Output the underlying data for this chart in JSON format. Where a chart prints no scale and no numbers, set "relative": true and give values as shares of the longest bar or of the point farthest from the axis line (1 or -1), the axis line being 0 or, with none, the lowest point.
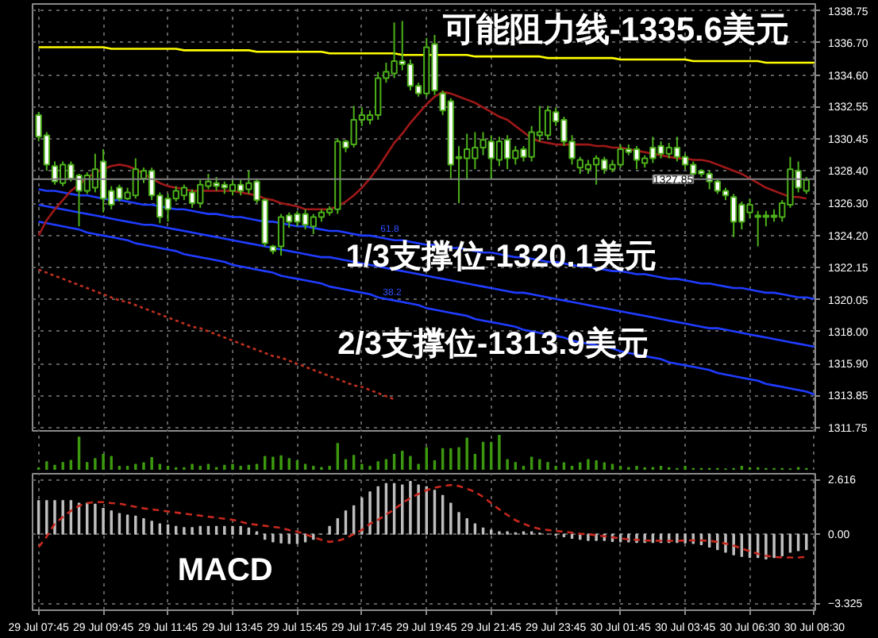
{
  "chart_data": [
    {
      "type": "candlestick",
      "categories": [
        null,
        null,
        null,
        null,
        null,
        null,
        null,
        null,
        null,
        null,
        null,
        null,
        null,
        null,
        null,
        null,
        null,
        null,
        null,
        null,
        null,
        null,
        null,
        null,
        null,
        null,
        null,
        null,
        null,
        null,
        null,
        null,
        null,
        null,
        null,
        null,
        null,
        null,
        null,
        null,
        null,
        null,
        null,
        null,
        null,
        null,
        null,
        null,
        null,
        null,
        null,
        null,
        null,
        null,
        null,
        null,
        null,
        null,
        null,
        null,
        null,
        null,
        null,
        null,
        null,
        null,
        null,
        null,
        null,
        null,
        null,
        null,
        null,
        null,
        null,
        null,
        null,
        null,
        null,
        null,
        null,
        null,
        null,
        null,
        null,
        null,
        null,
        null,
        null,
        null,
        null,
        null,
        null,
        null,
        null,
        null,
        null
      ],
      "tick_labels": "y",
      "ylim": [
        1311.45,
        1339.2
      ],
      "yticks": [
        1338.75,
        {
          "value": 1336.7,
          "label": "1336.70"
        },
        {
          "value": 1334.6,
          "label": "1334.60"
        },
        1332.55,
        1330.45,
        {
          "value": 1328.4,
          "label": "1328.40"
        },
        {
          "value": 1326.3,
          "label": "1326.30"
        },
        {
          "value": 1324.2,
          "label": "1324.20"
        },
        1322.15,
        1320.05,
        {
          "value": 1318,
          "label": "1318.00"
        },
        {
          "value": 1315.9,
          "label": "1315.90"
        },
        1313.85,
        1311.75
      ],
      "grid": true,
      "ref_lines": [
        {
          "axis": "y",
          "value": 1327.85,
          "label": "1327.85",
          "color": "#808080"
        }
      ],
      "annotations": [
        "可能阻力线-1335.6美元",
        "1/3支撑位-1320.1美元",
        "2/3支撑位-1313.9美元",
        "61.8",
        "38.2"
      ],
      "series": [
        {
          "type": "line",
          "color": "#ffff00",
          "values": [
            1336.4,
            1336.4,
            1336.4,
            1336.4,
            1336.4,
            1336.4,
            1336.4,
            1336.4,
            1336.4,
            1336.3,
            1336.3,
            1336.3,
            1336.3,
            1336.3,
            1336.3,
            1336.3,
            1336.3,
            1336.3,
            1336.2,
            1336.2,
            1336.2,
            1336.2,
            1336.2,
            1336.2,
            1336.2,
            1336.2,
            1336.2,
            1336.1,
            1336.1,
            1336.1,
            1336.1,
            1336.1,
            1336.1,
            1336.1,
            1336.1,
            1336.1,
            1336.0,
            1336.0,
            1336.0,
            1336.0,
            1336.0,
            1336.0,
            1336.0,
            1336.0,
            1336.0,
            1335.9,
            1335.9,
            1335.9,
            1335.9,
            1335.9,
            1335.9,
            1335.9,
            1335.9,
            1335.9,
            1335.8,
            1335.8,
            1335.8,
            1335.8,
            1335.8,
            1335.8,
            1335.8,
            1335.8,
            1335.8,
            1335.7,
            1335.7,
            1335.7,
            1335.7,
            1335.7,
            1335.7,
            1335.7,
            1335.7,
            1335.7,
            1335.6,
            1335.6,
            1335.6,
            1335.6,
            1335.6,
            1335.6,
            1335.6,
            1335.6,
            1335.6,
            1335.5,
            1335.5,
            1335.5,
            1335.5,
            1335.5,
            1335.5,
            1335.5,
            1335.5,
            1335.5,
            1335.4,
            1335.4,
            1335.4,
            1335.4,
            1335.4,
            1335.4,
            1335.4
          ]
        },
        {
          "type": "line",
          "color": "#1f3cff",
          "values": [
            1327.2,
            1327.1,
            1327.1,
            1327.0,
            1326.9,
            1326.8,
            1326.8,
            1326.7,
            1326.6,
            1326.5,
            1326.5,
            1326.4,
            1326.3,
            1326.2,
            1326.2,
            1326.1,
            1326.0,
            1325.9,
            1325.9,
            1325.8,
            1325.7,
            1325.6,
            1325.6,
            1325.5,
            1325.4,
            1325.4,
            1325.3,
            1325.2,
            1325.1,
            1325.1,
            1325.0,
            1324.9,
            1324.8,
            1324.8,
            1324.7,
            1324.6,
            1324.5,
            1324.5,
            1324.4,
            1324.3,
            1324.2,
            1324.2,
            1324.1,
            1324.0,
            1323.9,
            1323.9,
            1323.8,
            1323.7,
            1323.6,
            1323.6,
            1323.5,
            1323.4,
            1323.4,
            1323.3,
            1323.2,
            1323.1,
            1323.1,
            1323.0,
            1322.9,
            1322.8,
            1322.8,
            1322.7,
            1322.6,
            1322.5,
            1322.5,
            1322.4,
            1322.3,
            1322.2,
            1322.2,
            1322.1,
            1322.0,
            1321.9,
            1321.9,
            1321.8,
            1321.7,
            1321.7,
            1321.6,
            1321.5,
            1321.4,
            1321.4,
            1321.3,
            1321.2,
            1321.1,
            1321.1,
            1321.0,
            1320.9,
            1320.8,
            1320.8,
            1320.7,
            1320.6,
            1320.5,
            1320.5,
            1320.4,
            1320.3,
            1320.2,
            1320.2,
            1320.1
          ]
        },
        {
          "type": "line",
          "color": "#1f3cff",
          "values": [
            1326.2,
            1326.1,
            1326.0,
            1325.9,
            1325.8,
            1325.7,
            1325.6,
            1325.5,
            1325.4,
            1325.3,
            1325.2,
            1325.1,
            1325.0,
            1324.9,
            1324.9,
            1324.8,
            1324.7,
            1324.6,
            1324.5,
            1324.4,
            1324.3,
            1324.2,
            1324.1,
            1324.0,
            1323.9,
            1323.8,
            1323.7,
            1323.6,
            1323.5,
            1323.4,
            1323.3,
            1323.2,
            1323.1,
            1323.0,
            1322.9,
            1322.8,
            1322.8,
            1322.7,
            1322.6,
            1322.5,
            1322.4,
            1322.3,
            1322.2,
            1322.1,
            1322.0,
            1321.9,
            1321.8,
            1321.7,
            1321.6,
            1321.5,
            1321.4,
            1321.3,
            1321.2,
            1321.1,
            1321.0,
            1320.9,
            1320.8,
            1320.7,
            1320.6,
            1320.5,
            1320.5,
            1320.4,
            1320.3,
            1320.2,
            1320.1,
            1320.0,
            1319.9,
            1319.8,
            1319.7,
            1319.6,
            1319.5,
            1319.4,
            1319.3,
            1319.2,
            1319.1,
            1319.0,
            1318.9,
            1318.8,
            1318.7,
            1318.6,
            1318.5,
            1318.4,
            1318.3,
            1318.2,
            1318.2,
            1318.1,
            1318.0,
            1317.9,
            1317.8,
            1317.7,
            1317.6,
            1317.5,
            1317.4,
            1317.3,
            1317.2,
            1317.1,
            1317.0
          ]
        },
        {
          "type": "line",
          "color": "#1f3cff",
          "values": [
            1325.1,
            1325.0,
            1324.9,
            1324.8,
            1324.7,
            1324.6,
            1324.4,
            1324.3,
            1324.2,
            1324.1,
            1324.0,
            1323.9,
            1323.7,
            1323.6,
            1323.5,
            1323.4,
            1323.3,
            1323.2,
            1323.0,
            1322.9,
            1322.8,
            1322.7,
            1322.6,
            1322.5,
            1322.3,
            1322.2,
            1322.1,
            1322.0,
            1321.9,
            1321.8,
            1321.6,
            1321.5,
            1321.4,
            1321.3,
            1321.2,
            1321.1,
            1320.9,
            1320.8,
            1320.7,
            1320.6,
            1320.5,
            1320.4,
            1320.2,
            1320.1,
            1320.0,
            1319.9,
            1319.8,
            1319.7,
            1319.5,
            1319.4,
            1319.3,
            1319.2,
            1319.1,
            1319.0,
            1318.8,
            1318.7,
            1318.6,
            1318.5,
            1318.4,
            1318.3,
            1318.1,
            1318.0,
            1317.9,
            1317.8,
            1317.7,
            1317.6,
            1317.4,
            1317.3,
            1317.2,
            1317.1,
            1317.0,
            1316.9,
            1316.7,
            1316.6,
            1316.5,
            1316.4,
            1316.3,
            1316.2,
            1316.0,
            1315.9,
            1315.8,
            1315.7,
            1315.6,
            1315.5,
            1315.3,
            1315.2,
            1315.1,
            1315.0,
            1314.9,
            1314.8,
            1314.6,
            1314.5,
            1314.4,
            1314.3,
            1314.2,
            1314.1,
            1313.9
          ]
        },
        {
          "type": "line",
          "color": "#c03020",
          "line_style": "dotted",
          "values": [
            1322.0,
            1321.8,
            1321.6,
            1321.4,
            1321.2,
            1321.0,
            1320.8,
            1320.6,
            1320.4,
            1320.2,
            1320.0,
            1319.9,
            1319.7,
            1319.5,
            1319.3,
            1319.1,
            1318.9,
            1318.7,
            1318.5,
            1318.3,
            1318.2,
            1318.0,
            1317.8,
            1317.6,
            1317.4,
            1317.2,
            1317.0,
            1316.8,
            1316.6,
            1316.4,
            1316.3,
            1316.1,
            1315.9,
            1315.7,
            1315.5,
            1315.3,
            1315.1,
            1314.9,
            1314.7,
            1314.5,
            1314.4,
            1314.2,
            1314.0,
            1313.8,
            1313.6,
            null,
            null,
            null,
            null,
            null,
            null,
            null,
            null,
            null,
            null,
            null,
            null,
            null,
            null,
            null,
            null,
            null,
            null,
            null,
            null,
            null,
            null,
            null,
            null,
            null,
            null,
            null,
            null,
            null,
            null,
            null,
            null,
            null,
            null,
            null,
            null,
            null,
            null,
            null,
            null,
            null,
            null,
            null,
            null,
            null,
            null,
            null,
            null,
            null,
            null,
            null,
            null
          ]
        },
        {
          "type": "line",
          "color": "#a01818",
          "values": [
            1324.2,
            1325.2,
            1325.9,
            1326.5,
            1327.1,
            1327.5,
            1327.9,
            1328.3,
            1328.5,
            1328.7,
            1328.8,
            1328.7,
            1328.5,
            1328.2,
            1327.9,
            1327.6,
            1327.4,
            1327.3,
            1327.2,
            1327.1,
            1327.1,
            1327.1,
            1327.1,
            1327.1,
            1327.1,
            1327.0,
            1326.9,
            1326.8,
            1326.6,
            1326.5,
            1326.3,
            1326.2,
            1326.1,
            1325.9,
            1325.9,
            1325.9,
            1325.9,
            1326.1,
            1326.4,
            1326.8,
            1327.3,
            1327.9,
            1328.6,
            1329.4,
            1330.2,
            1330.8,
            1331.5,
            1332.1,
            1332.7,
            1333.2,
            1333.5,
            1333.4,
            1333.2,
            1333.0,
            1332.8,
            1332.5,
            1332.2,
            1331.9,
            1331.7,
            1331.3,
            1330.9,
            1330.5,
            1330.3,
            1330.2,
            1330.1,
            1330.1,
            1330.1,
            1330.1,
            1330.1,
            1330.0,
            1330.0,
            1329.9,
            1329.9,
            1329.8,
            1329.7,
            1329.6,
            1329.5,
            1329.4,
            1329.3,
            1329.2,
            1329.2,
            1329.1,
            1329.1,
            1329.0,
            1328.8,
            1328.6,
            1328.4,
            1328.2,
            1327.9,
            1327.6,
            1327.3,
            1327.1,
            1326.9,
            1326.7,
            1326.7,
            1326.6,
            null
          ]
        },
        {
          "type": "candlestick",
          "color": "#4cb01a",
          "ohlc": [
            [
              1332.0,
              1332.2,
              1330.3,
              1330.6
            ],
            [
              1330.7,
              1330.9,
              1328.4,
              1328.8
            ],
            [
              1328.7,
              1329.0,
              1327.5,
              1327.7
            ],
            [
              1327.6,
              1329.0,
              1327.4,
              1328.8
            ],
            [
              1328.8,
              1329.0,
              1327.7,
              1327.9
            ],
            [
              1328.1,
              1328.2,
              1324.8,
              1327.1
            ],
            [
              1327.1,
              1328.3,
              1326.9,
              1328.1
            ],
            [
              1327.3,
              1329.5,
              1327.0,
              1328.5
            ],
            [
              1329.0,
              1329.8,
              1325.7,
              1326.6
            ],
            [
              1327.1,
              1327.4,
              1325.9,
              1326.2
            ],
            [
              1327.3,
              1327.5,
              1326.4,
              1326.6
            ],
            [
              1326.6,
              1327.3,
              1326.5,
              1327.0
            ],
            [
              1326.8,
              1329.2,
              1326.6,
              1328.5
            ],
            [
              1327.9,
              1328.6,
              1327.6,
              1328.4
            ],
            [
              1328.4,
              1328.6,
              1326.5,
              1326.8
            ],
            [
              1326.8,
              1327.0,
              1325.0,
              1325.4
            ],
            [
              1326.6,
              1326.9,
              1325.1,
              1325.9
            ],
            [
              1326.6,
              1327.4,
              1326.4,
              1327.1
            ],
            [
              1326.8,
              1327.5,
              1326.5,
              1327.3
            ],
            [
              1327.0,
              1327.2,
              1326.0,
              1326.3
            ],
            [
              1326.3,
              1327.8,
              1326.0,
              1327.5
            ],
            [
              1327.4,
              1328.2,
              1327.2,
              1327.7
            ],
            [
              1327.6,
              1328.0,
              1327.1,
              1327.4
            ],
            [
              1327.5,
              1327.7,
              1326.9,
              1327.3
            ],
            [
              1327.1,
              1327.8,
              1326.8,
              1327.5
            ],
            [
              1327.5,
              1327.8,
              1326.8,
              1327.1
            ],
            [
              1327.2,
              1328.4,
              1326.9,
              1327.6
            ],
            [
              1327.7,
              1327.9,
              1326.3,
              1326.5
            ],
            [
              1326.5,
              1326.6,
              1323.5,
              1323.7
            ],
            [
              1323.5,
              1323.6,
              1323.0,
              1323.2
            ],
            [
              1323.5,
              1325.6,
              1322.9,
              1325.4
            ],
            [
              1325.5,
              1325.7,
              1324.7,
              1325.1
            ],
            [
              1325.6,
              1325.8,
              1324.8,
              1325.1
            ],
            [
              1325.6,
              1325.9,
              1324.6,
              1324.9
            ],
            [
              1324.8,
              1325.6,
              1324.3,
              1325.4
            ],
            [
              1325.4,
              1325.9,
              1325.1,
              1325.7
            ],
            [
              1325.7,
              1326.1,
              1325.5,
              1325.9
            ],
            [
              1325.9,
              1330.5,
              1325.6,
              1330.3
            ],
            [
              1330.3,
              1330.4,
              1329.6,
              1329.9
            ],
            [
              1330.1,
              1332.6,
              1329.9,
              1331.7
            ],
            [
              1331.7,
              1332.5,
              1331.3,
              1332.0
            ],
            [
              1331.7,
              1332.3,
              1331.4,
              1332.0
            ],
            [
              1332.0,
              1334.8,
              1331.7,
              1334.4
            ],
            [
              1334.4,
              1335.4,
              1334.1,
              1334.8
            ],
            [
              1334.7,
              1338.0,
              1334.4,
              1335.5
            ],
            [
              1335.5,
              1338.1,
              1334.9,
              1335.3
            ],
            [
              1335.3,
              1335.6,
              1333.6,
              1333.9
            ],
            [
              1333.9,
              1334.1,
              1333.2,
              1333.4
            ],
            [
              1333.4,
              1337.0,
              1333.2,
              1336.4
            ],
            [
              1336.6,
              1337.2,
              1333.3,
              1333.6
            ],
            [
              1333.4,
              1333.6,
              1332.0,
              1332.3
            ],
            [
              1332.9,
              1333.1,
              1327.9,
              1328.8
            ],
            [
              1329.2,
              1330.0,
              1326.3,
              1329.3
            ],
            [
              1329.2,
              1330.8,
              1327.8,
              1329.8
            ],
            [
              1329.2,
              1330.9,
              1328.5,
              1329.9
            ],
            [
              1329.9,
              1330.9,
              1329.4,
              1330.4
            ],
            [
              1330.3,
              1330.7,
              1327.9,
              1329.2
            ],
            [
              1329.1,
              1330.6,
              1328.7,
              1330.3
            ],
            [
              1330.4,
              1330.7,
              1328.5,
              1329.2
            ],
            [
              1329.2,
              1330.0,
              1328.8,
              1329.7
            ],
            [
              1329.8,
              1330.0,
              1329.0,
              1329.3
            ],
            [
              1329.3,
              1331.3,
              1329.0,
              1330.9
            ],
            [
              1330.7,
              1332.6,
              1330.3,
              1330.9
            ],
            [
              1330.7,
              1332.6,
              1330.4,
              1332.3
            ],
            [
              1332.2,
              1332.5,
              1331.3,
              1331.6
            ],
            [
              1331.7,
              1331.9,
              1330.0,
              1330.3
            ],
            [
              1330.3,
              1330.7,
              1328.8,
              1329.2
            ],
            [
              1328.6,
              1329.3,
              1328.2,
              1329.1
            ],
            [
              1328.5,
              1329.1,
              1328.2,
              1328.8
            ],
            [
              1328.8,
              1329.4,
              1327.5,
              1329.2
            ],
            [
              1329.1,
              1329.3,
              1328.2,
              1328.5
            ],
            [
              1328.5,
              1329.1,
              1328.3,
              1328.8
            ],
            [
              1328.8,
              1330.1,
              1328.6,
              1329.8
            ],
            [
              1329.8,
              1330.1,
              1329.4,
              1329.6
            ],
            [
              1329.8,
              1330.0,
              1328.5,
              1329.1
            ],
            [
              1328.9,
              1329.4,
              1328.6,
              1329.2
            ],
            [
              1329.9,
              1330.6,
              1328.9,
              1329.2
            ],
            [
              1330.0,
              1330.3,
              1329.2,
              1329.5
            ],
            [
              1329.5,
              1330.2,
              1329.2,
              1329.9
            ],
            [
              1329.9,
              1330.6,
              1329.0,
              1329.3
            ],
            [
              1329.3,
              1329.5,
              1328.5,
              1328.8
            ],
            [
              1328.8,
              1329.0,
              1328.0,
              1328.2
            ],
            [
              1328.4,
              1328.5,
              1328.0,
              1328.2
            ],
            [
              1328.2,
              1328.4,
              1327.2,
              1327.7
            ],
            [
              1327.7,
              1327.9,
              1326.9,
              1327.1
            ],
            [
              1327.1,
              1327.3,
              1326.5,
              1326.8
            ],
            [
              1326.7,
              1326.9,
              1324.1,
              1325.1
            ],
            [
              1326.2,
              1326.4,
              1324.6,
              1325.1
            ],
            [
              1325.7,
              1326.6,
              1325.3,
              1326.2
            ],
            [
              1325.5,
              1325.8,
              1323.5,
              1325.4
            ],
            [
              1325.4,
              1325.8,
              1324.8,
              1325.5
            ],
            [
              1325.4,
              1325.9,
              1325.1,
              1325.5
            ],
            [
              1325.4,
              1326.5,
              1325.1,
              1326.3
            ],
            [
              1326.2,
              1329.3,
              1326.0,
              1328.5
            ],
            [
              1328.4,
              1329.0,
              1327.0,
              1327.3
            ],
            [
              1327.1,
              1328.0,
              1326.9,
              1327.8
            ],
            null
          ]
        }
      ]
    },
    {
      "type": "bar",
      "relative": true,
      "tick_labels": false,
      "grid": "x",
      "color": "#3d9a10",
      "categories": [
        null,
        null,
        null,
        null,
        null,
        null,
        null,
        null,
        null,
        null,
        null,
        null,
        null,
        null,
        null,
        null,
        null,
        null,
        null,
        null,
        null,
        null,
        null,
        null,
        null,
        null,
        null,
        null,
        null,
        null,
        null,
        null,
        null,
        null,
        null,
        null,
        null,
        null,
        null,
        null,
        null,
        null,
        null,
        null,
        null,
        null,
        null,
        null,
        null,
        null,
        null,
        null,
        null,
        null,
        null,
        null,
        null,
        null,
        null,
        null,
        null,
        null,
        null,
        null,
        null,
        null,
        null,
        null,
        null,
        null,
        null,
        null,
        null,
        null,
        null,
        null,
        null,
        null,
        null,
        null,
        null,
        null,
        null,
        null,
        null,
        null,
        null,
        null,
        null,
        null,
        null,
        null,
        null,
        null,
        null,
        null,
        null
      ],
      "values": [
        0.08,
        0.25,
        0.15,
        0.23,
        0.29,
        0.95,
        0.23,
        0.34,
        0.46,
        0.4,
        0.12,
        0.12,
        0.18,
        0.22,
        0.37,
        0.18,
        0.12,
        0.08,
        0.08,
        0.18,
        0.12,
        0.18,
        0.09,
        0.15,
        0.18,
        0.12,
        0.15,
        0.18,
        0.4,
        0.38,
        0.42,
        0.34,
        0.28,
        0.18,
        0.12,
        0.09,
        0.12,
        0.77,
        0.31,
        0.43,
        0.18,
        0.12,
        0.25,
        0.31,
        0.46,
        0.55,
        0.4,
        0.18,
        0.65,
        0.28,
        0.62,
        0.62,
        0.65,
        0.92,
        0.46,
        0.8,
        0.8,
        1,
        0.31,
        0.23,
        0.12,
        0.38,
        0.31,
        0.23,
        0.12,
        0.22,
        0.12,
        0.22,
        0.31,
        0.28,
        0.22,
        0.18,
        0.12,
        0.09,
        0.12,
        0.08,
        0.09,
        0.12,
        0.08,
        0.06,
        0.12,
        0.06,
        0.06,
        0.06,
        0.06,
        0.05,
        0.06,
        0.12,
        0.08,
        0.08,
        0.06,
        0.06,
        0.06,
        0.05,
        0.09,
        0.06,
        null
      ]
    },
    {
      "type": "bar",
      "categories": [
        "29 Jul 07:45",
        null,
        null,
        null,
        null,
        null,
        null,
        null,
        "29 Jul 09:45",
        null,
        null,
        null,
        null,
        null,
        null,
        null,
        "29 Jul 11:45",
        null,
        null,
        null,
        null,
        null,
        null,
        null,
        "29 Jul 13:45",
        null,
        null,
        null,
        null,
        null,
        null,
        null,
        "29 Jul 15:45",
        null,
        null,
        null,
        null,
        null,
        null,
        null,
        "29 Jul 17:45",
        null,
        null,
        null,
        null,
        null,
        null,
        null,
        "29 Jul 19:45",
        null,
        null,
        null,
        null,
        null,
        null,
        null,
        "29 Jul 21:45",
        null,
        null,
        null,
        null,
        null,
        null,
        null,
        "29 Jul 23:45",
        null,
        null,
        null,
        null,
        null,
        null,
        null,
        "30 Jul 01:45",
        null,
        null,
        null,
        null,
        null,
        null,
        null,
        "30 Jul 03:45",
        null,
        null,
        null,
        null,
        null,
        null,
        null,
        "30 Jul 06:30",
        null,
        null,
        null,
        null,
        null,
        null,
        null,
        "30 Jul 08:30"
      ],
      "ylim": [
        -3.65,
        2.9
      ],
      "yticks": [
        2.616,
        {
          "value": 0,
          "label": "0.00"
        },
        -3.325
      ],
      "grid": true,
      "annotations": [
        "MACD"
      ],
      "series": [
        {
          "color": "#c0c0c0",
          "values": [
            1.61,
            1.61,
            1.61,
            1.61,
            1.61,
            1.49,
            1.49,
            1.44,
            1.24,
            1.12,
            0.99,
            0.92,
            0.87,
            0.74,
            0.62,
            0.5,
            0.45,
            0.37,
            0.32,
            0.32,
            0.37,
            0.37,
            0.37,
            0.37,
            0.37,
            0.37,
            0.3,
            0.12,
            -0.25,
            -0.37,
            -0.42,
            -0.45,
            -0.45,
            -0.37,
            -0.25,
            0,
            0.37,
            0.74,
            1.12,
            1.36,
            1.74,
            2.03,
            2.28,
            2.43,
            2.43,
            2.36,
            2.53,
            2.36,
            2.28,
            2.11,
            1.86,
            1.49,
            1.04,
            0.74,
            0.5,
            0.3,
            0.2,
            0.12,
            0.12,
            0.07,
            0.12,
            0.12,
            0.05,
            0,
            -0.05,
            -0.12,
            -0.2,
            -0.25,
            -0.3,
            -0.3,
            -0.3,
            -0.35,
            -0.37,
            -0.37,
            -0.4,
            -0.4,
            -0.4,
            -0.4,
            -0.4,
            -0.4,
            -0.42,
            -0.45,
            -0.5,
            -0.62,
            -0.74,
            -0.87,
            -0.99,
            -1.07,
            -1.12,
            -1.12,
            -1.19,
            -1.12,
            -1.04,
            -0.87,
            -0.79,
            -0.74,
            null
          ]
        },
        {
          "type": "line",
          "color": "#c8281e",
          "line_style": "dashed",
          "values": [
            -0.62,
            -0.12,
            0.5,
            0.82,
            1.12,
            1.36,
            1.49,
            1.54,
            1.54,
            1.49,
            1.47,
            1.39,
            1.31,
            1.24,
            1.19,
            1.14,
            1.09,
            1.04,
            0.99,
            0.94,
            0.89,
            0.84,
            0.79,
            0.74,
            0.69,
            0.6,
            0.5,
            0.45,
            0.4,
            0.35,
            0.3,
            0.2,
            0.12,
            0,
            -0.15,
            -0.27,
            -0.37,
            -0.32,
            -0.2,
            0,
            0.2,
            0.5,
            0.69,
            0.94,
            1.19,
            1.49,
            1.74,
            1.93,
            2.11,
            2.23,
            2.31,
            2.36,
            2.31,
            2.18,
            2.03,
            1.79,
            1.49,
            1.19,
            0.92,
            0.67,
            0.5,
            0.35,
            0.25,
            0.2,
            0.15,
            0.12,
            0.07,
            0.02,
            0,
            -0.05,
            -0.1,
            -0.15,
            -0.2,
            -0.25,
            -0.27,
            -0.3,
            -0.31,
            -0.32,
            -0.32,
            -0.32,
            -0.3,
            -0.3,
            -0.3,
            -0.32,
            -0.37,
            -0.45,
            -0.55,
            -0.69,
            -0.82,
            -0.94,
            -1.04,
            -1.09,
            -1.12,
            -1.12,
            -1.12,
            -1.09,
            null
          ]
        }
      ]
    }
  ]
}
